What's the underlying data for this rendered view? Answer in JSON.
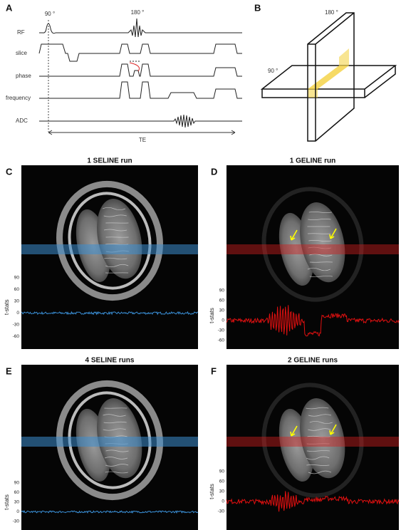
{
  "figure": {
    "panel_a": {
      "label": "A",
      "excitation": "90 °",
      "refocusing": "180 °",
      "rows": [
        "RF",
        "slice",
        "phase",
        "frequency",
        "ADC"
      ],
      "echo_time": "TE"
    },
    "panel_b": {
      "label": "B",
      "vertical_plane": "180 °",
      "horizontal_plane": "90 °"
    },
    "panels": [
      {
        "label": "C",
        "title": "1 SELINE run",
        "y_label": "t-stats",
        "yticks": [
          90,
          60,
          30,
          0,
          -30,
          -60
        ]
      },
      {
        "label": "D",
        "title": "1 GELINE run",
        "y_label": "t-stats",
        "yticks": [
          90,
          60,
          30,
          0,
          -30,
          -60
        ]
      },
      {
        "label": "E",
        "title": "4 SELINE runs",
        "y_label": "t-stats",
        "yticks": [
          90,
          60,
          30,
          0,
          -30
        ]
      },
      {
        "label": "F",
        "title": "2 GELINE runs",
        "y_label": "t-stats",
        "yticks": [
          90,
          60,
          30,
          0,
          -30
        ]
      }
    ]
  }
}
